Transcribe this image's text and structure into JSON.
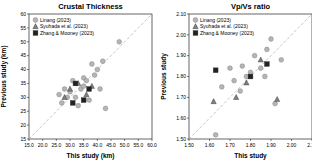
{
  "chart_data": [
    {
      "type": "scatter",
      "title": "Crustal Thickness",
      "x_label": "This study (km)",
      "y_label": "Previous study (km)",
      "xlim": [
        15,
        60
      ],
      "ylim": [
        15,
        60
      ],
      "xticks": [
        {
          "value": 15,
          "label": "15.0"
        },
        {
          "value": 20,
          "label": "20.0"
        },
        {
          "value": 25,
          "label": "25.0"
        },
        {
          "value": 30,
          "label": "30.0"
        },
        {
          "value": 35,
          "label": "35.0"
        },
        {
          "value": 40,
          "label": "40.0"
        },
        {
          "value": 45,
          "label": "45.0"
        },
        {
          "value": 50,
          "label": "50.0"
        },
        {
          "value": 55,
          "label": "55.0"
        },
        {
          "value": 60,
          "label": "60.0"
        }
      ],
      "yticks": [
        15,
        20,
        25,
        30,
        35,
        40,
        45,
        50,
        55,
        60
      ],
      "grid": false,
      "legend": "upper-left",
      "series": [
        {
          "name": "Linang (2023)",
          "color": "#b5b5b5",
          "marker": "circle",
          "x": [
            26,
            27,
            28,
            29,
            31,
            32,
            33,
            34,
            35,
            36,
            37,
            38,
            39,
            40,
            41,
            42,
            43,
            48,
            35,
            30
          ],
          "values": [
            31,
            28,
            33,
            30,
            36,
            30,
            27,
            33,
            37,
            36,
            29,
            42,
            38,
            40,
            33,
            43,
            26,
            50,
            34,
            32
          ]
        },
        {
          "name": "Syuhada et al. (2023)",
          "color": "#7f7f7f",
          "marker": "triangle",
          "x": [
            28,
            30,
            33,
            36,
            38
          ],
          "values": [
            30,
            33,
            35,
            31,
            34
          ]
        },
        {
          "name": "Zhang & Mooney (2023)",
          "color": "#222222",
          "marker": "square",
          "x": [
            31,
            32,
            35,
            37
          ],
          "values": [
            28,
            35,
            29,
            33
          ]
        }
      ]
    },
    {
      "type": "scatter",
      "title": "Vp/Vs ratio",
      "x_label": "This study",
      "y_label": "Previous study",
      "xlim": [
        1.5,
        2.1
      ],
      "ylim": [
        1.5,
        2.1
      ],
      "xticks": [
        {
          "value": 1.5,
          "label": "1.50"
        },
        {
          "value": 1.6,
          "label": "1.60"
        },
        {
          "value": 1.7,
          "label": "1.70"
        },
        {
          "value": 1.8,
          "label": "1.80"
        },
        {
          "value": 1.9,
          "label": "1.90"
        },
        {
          "value": 2.0,
          "label": "2.00"
        },
        {
          "value": 2.1,
          "label": "2.10"
        }
      ],
      "yticks": [
        {
          "value": 1.5,
          "label": "1.50"
        },
        {
          "value": 1.6,
          "label": "1.60"
        },
        {
          "value": 1.7,
          "label": "1.70"
        },
        {
          "value": 1.8,
          "label": "1.80"
        },
        {
          "value": 1.9,
          "label": "1.90"
        },
        {
          "value": 2.0,
          "label": "2.00"
        },
        {
          "value": 2.1,
          "label": "2.10"
        }
      ],
      "grid": false,
      "legend": "upper-left",
      "series": [
        {
          "name": "Linang (2023)",
          "color": "#b5b5b5",
          "marker": "circle",
          "x": [
            1.63,
            1.66,
            1.72,
            1.75,
            1.76,
            1.78,
            1.8,
            1.82,
            1.85,
            1.87,
            1.88,
            1.9,
            1.92,
            1.95,
            1.7
          ],
          "values": [
            1.52,
            1.75,
            1.78,
            1.73,
            1.85,
            1.8,
            1.82,
            1.9,
            1.84,
            1.8,
            1.93,
            1.98,
            1.67,
            1.88,
            1.84
          ]
        },
        {
          "name": "Syuhada et al. (2023)",
          "color": "#7f7f7f",
          "marker": "triangle",
          "x": [
            1.62,
            1.73,
            1.78,
            1.85,
            1.93
          ],
          "values": [
            1.68,
            1.7,
            1.77,
            1.88,
            1.69
          ]
        },
        {
          "name": "Zhang & Mooney (2023)",
          "color": "#222222",
          "marker": "square",
          "x": [
            1.63,
            1.8,
            1.88
          ],
          "values": [
            1.83,
            1.8,
            1.86
          ]
        }
      ]
    }
  ]
}
